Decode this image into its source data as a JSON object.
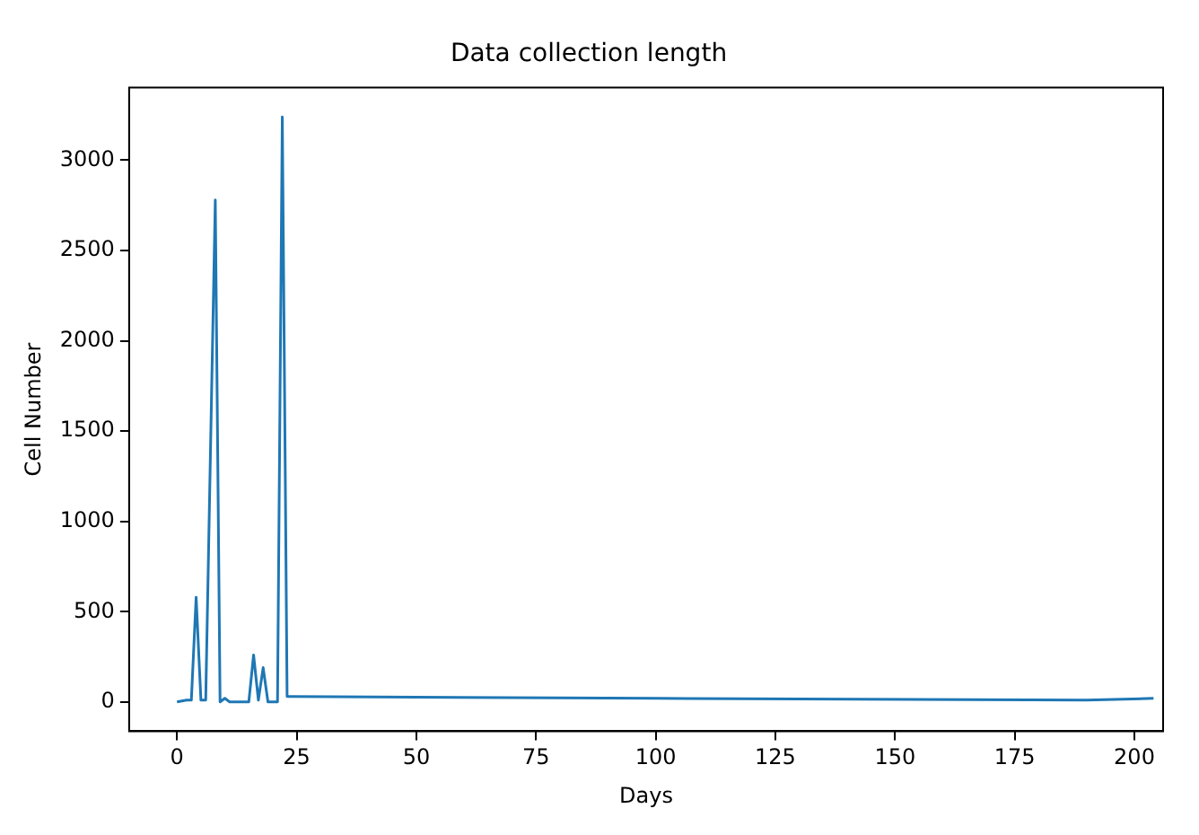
{
  "chart_data": {
    "type": "line",
    "title": "Data collection length",
    "xlabel": "Days",
    "ylabel": "Cell Number",
    "x": [
      0,
      2,
      3,
      4,
      5,
      6,
      8,
      9,
      10,
      11,
      12,
      14,
      15,
      16,
      17,
      18,
      19,
      20,
      21,
      22,
      23,
      24,
      100,
      190,
      204
    ],
    "series": [
      {
        "color": "#1f77b4",
        "values": [
          0,
          10,
          10,
          580,
          10,
          10,
          2780,
          0,
          20,
          0,
          0,
          0,
          0,
          260,
          10,
          190,
          0,
          0,
          0,
          3240,
          30,
          30,
          20,
          10,
          20
        ]
      }
    ],
    "xlim": [
      -10,
      206
    ],
    "xticks": [
      0,
      25,
      50,
      75,
      100,
      125,
      150,
      175,
      200
    ],
    "ylim": [
      -162,
      3402
    ],
    "yticks": [
      0,
      500,
      1000,
      1500,
      2000,
      2500,
      3000
    ],
    "grid": false,
    "legend": false,
    "marker": "none",
    "line_style": "solid"
  }
}
